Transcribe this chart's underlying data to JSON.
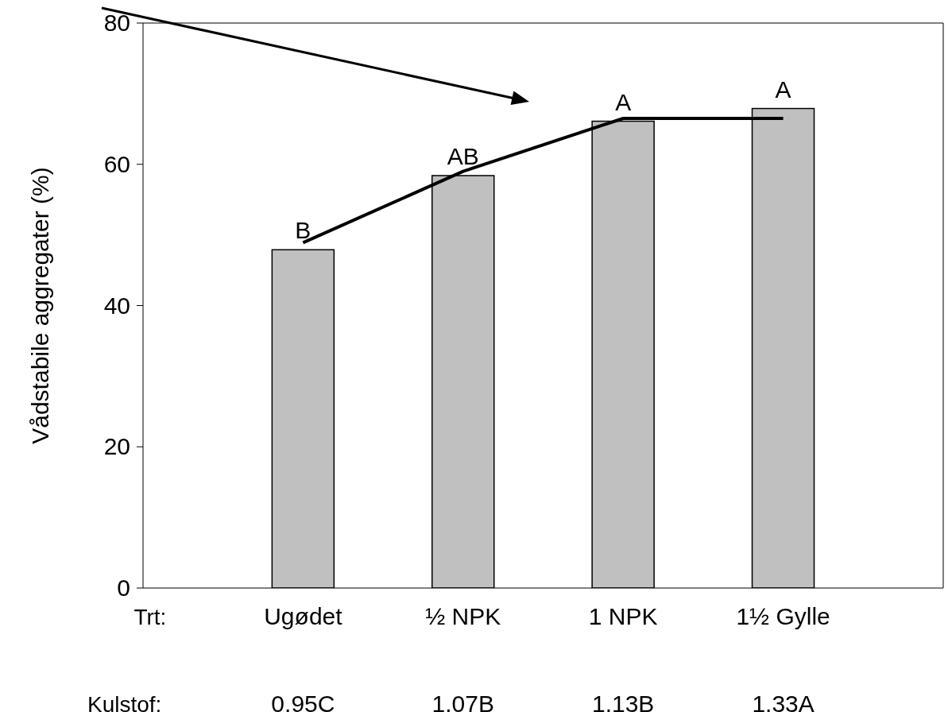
{
  "chart_data": {
    "type": "bar",
    "ylabel": "Vådstabile aggregater (%)",
    "categories": [
      "Ugødet",
      "½ NPK",
      "1 NPK",
      "1½ Gylle"
    ],
    "ylim": [
      0,
      80
    ],
    "yticks": [
      0,
      20,
      40,
      60,
      80
    ],
    "series": [
      {
        "color": "#c0c0c0",
        "values": [
          47.9,
          58.4,
          66.1,
          67.9
        ],
        "value_labels": [
          "B",
          "AB",
          "A",
          "A"
        ]
      },
      {
        "type": "line",
        "color": "#000000",
        "values": [
          48.9,
          59.0,
          66.5,
          66.5
        ]
      }
    ],
    "annotations": [
      "Trt:",
      "Kulstof:",
      "0.95C",
      "1.07B",
      "1.13B",
      "1.33A"
    ]
  }
}
